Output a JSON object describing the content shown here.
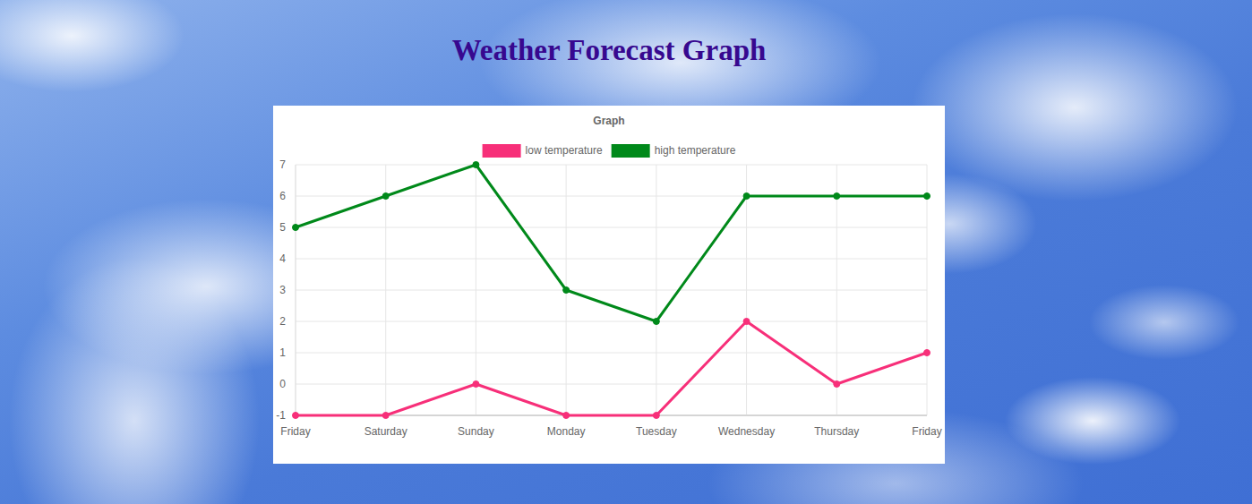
{
  "heading": "Weather Forecast Graph",
  "chart_data": {
    "type": "line",
    "title": "Graph",
    "categories": [
      "Friday",
      "Saturday",
      "Sunday",
      "Monday",
      "Tuesday",
      "Wednesday",
      "Thursday",
      "Friday"
    ],
    "series": [
      {
        "name": "low temperature",
        "color": "#f72f79",
        "marker": "circle",
        "values": [
          -1,
          -1,
          0,
          -1,
          -1,
          2,
          0,
          1
        ]
      },
      {
        "name": "high temperature",
        "color": "#00891a",
        "marker": "circle",
        "values": [
          5,
          6,
          7,
          3,
          2,
          6,
          6,
          6
        ]
      }
    ],
    "ylim": [
      -1,
      7
    ],
    "yticks": [
      -1,
      0,
      1,
      2,
      3,
      4,
      5,
      6,
      7
    ],
    "grid": true,
    "legend": "top"
  }
}
